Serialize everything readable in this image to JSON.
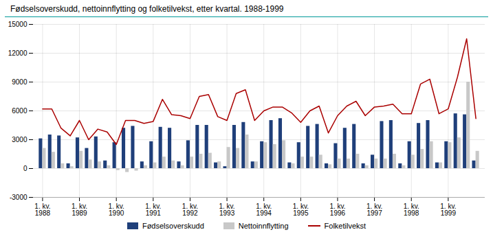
{
  "chart_data": {
    "type": "bar",
    "title": "Fødselsoverskudd, nettoinnflytting og folketilvekst, etter kvartal.  1988-1999",
    "categories": [
      "1. kv.\n1988",
      null,
      null,
      null,
      "1. kv.\n1989",
      null,
      null,
      null,
      "1. kv.\n1990",
      null,
      null,
      null,
      "1. kv.\n1991",
      null,
      null,
      null,
      "1. kv.\n1992",
      null,
      null,
      null,
      "1. kv.\n1993",
      null,
      null,
      null,
      "1. kv.\n1994",
      null,
      null,
      null,
      "1. kv.\n1995",
      null,
      null,
      null,
      "1. kv.\n1996",
      null,
      null,
      null,
      "1. kv.\n1997",
      null,
      null,
      null,
      "1. kv.\n1998",
      null,
      null,
      null,
      "1. kv.\n1999",
      null,
      null,
      null
    ],
    "series": [
      {
        "name": "Fødselsoverskudd",
        "type": "bar",
        "color": "#1f3f7a",
        "values": [
          3100,
          3500,
          3400,
          500,
          3200,
          2100,
          3300,
          800,
          2700,
          4200,
          4400,
          700,
          2800,
          4300,
          4200,
          700,
          2900,
          4500,
          4500,
          600,
          200,
          4500,
          4800,
          700,
          2800,
          5000,
          5200,
          600,
          2700,
          4400,
          4600,
          500,
          2600,
          4200,
          4600,
          500,
          1400,
          4900,
          5000,
          500,
          2800,
          4700,
          5000,
          600,
          2800,
          5700,
          5600,
          800
        ]
      },
      {
        "name": "Nettoinnflytting",
        "type": "bar",
        "color": "#c8c8c8",
        "values": [
          2100,
          1700,
          500,
          200,
          1800,
          900,
          700,
          300,
          -200,
          -400,
          -250,
          300,
          600,
          1200,
          800,
          300,
          1200,
          1500,
          1600,
          700,
          2200,
          2100,
          3500,
          700,
          2700,
          2500,
          2900,
          500,
          1200,
          1200,
          1400,
          400,
          1000,
          1000,
          1500,
          300,
          1000,
          1000,
          1500,
          300,
          1400,
          2000,
          2800,
          600,
          2700,
          3200,
          9000,
          1800
        ]
      },
      {
        "name": "Folketilvekst",
        "type": "line",
        "color": "#aa0000",
        "values": [
          6200,
          6200,
          4200,
          3400,
          5000,
          3000,
          4100,
          3800,
          2500,
          5000,
          5000,
          4700,
          4900,
          7200,
          5600,
          5500,
          5200,
          7500,
          7700,
          5400,
          5000,
          7800,
          8200,
          5000,
          6000,
          6400,
          6400,
          5800,
          4800,
          6000,
          6500,
          3700,
          5500,
          6500,
          7000,
          5500,
          6400,
          6500,
          6700,
          5700,
          5700,
          8800,
          9300,
          5700,
          6200,
          9500,
          13500,
          5200
        ]
      }
    ],
    "ylim": [
      -3000,
      15000
    ],
    "yticks": [
      -3000,
      0,
      3000,
      6000,
      9000,
      12000,
      15000
    ],
    "grid": true,
    "legend": "bottom"
  }
}
